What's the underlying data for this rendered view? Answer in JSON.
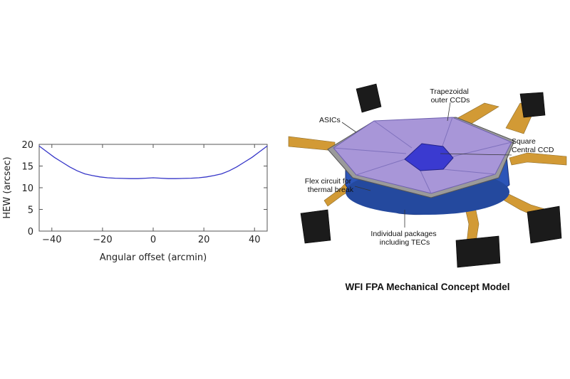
{
  "chart_data": {
    "type": "line",
    "title": "",
    "xlabel": "Angular offset (arcmin)",
    "ylabel": "HEW (arcsec)",
    "xlim": [
      -45,
      45
    ],
    "ylim": [
      0,
      20
    ],
    "xticks": [
      -40,
      -20,
      0,
      20,
      40
    ],
    "yticks": [
      0,
      5,
      10,
      15,
      20
    ],
    "grid": false,
    "legend": "none",
    "series": [
      {
        "color": "#3535c8",
        "x": [
          -45,
          -42,
          -39,
          -36,
          -33,
          -30,
          -27,
          -24,
          -21,
          -18,
          -15,
          -12,
          -9,
          -6,
          -3,
          0,
          3,
          6,
          9,
          12,
          15,
          18,
          21,
          24,
          27,
          30,
          33,
          36,
          39,
          42,
          45
        ],
        "y": [
          19.6,
          18.3,
          17.0,
          15.9,
          14.8,
          13.9,
          13.2,
          12.8,
          12.5,
          12.3,
          12.2,
          12.15,
          12.1,
          12.1,
          12.2,
          12.3,
          12.2,
          12.1,
          12.1,
          12.15,
          12.2,
          12.3,
          12.5,
          12.8,
          13.2,
          13.9,
          14.8,
          15.9,
          17.0,
          18.3,
          19.6
        ]
      }
    ]
  },
  "figure": {
    "labels": {
      "trapezoidal": [
        "Trapezoidal",
        "outer CCDs"
      ],
      "asics": "ASICs",
      "square": [
        "Square",
        "Central CCD"
      ],
      "flex": [
        "Flex circuit for",
        "thermal break"
      ],
      "packages": [
        "Individual packages",
        "including TECs"
      ]
    },
    "caption": "WFI FPA Mechanical Concept Model",
    "colors": {
      "ccd": "#a896d8",
      "central": "#3a3ad0",
      "base": "#2c55b8",
      "flex": "#d29a35",
      "frame": "#9a9a9a",
      "block": "#1b1b1b"
    }
  }
}
